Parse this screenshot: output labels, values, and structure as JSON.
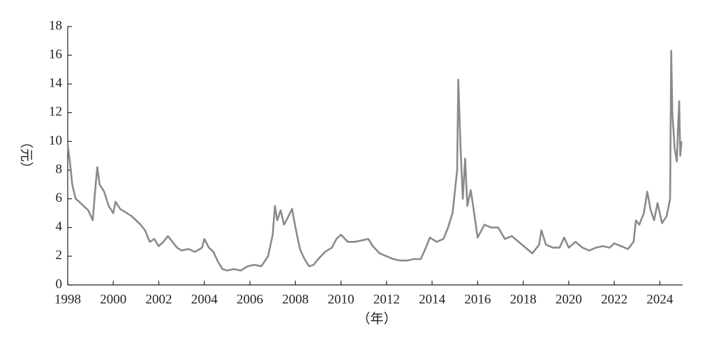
{
  "chart_data": {
    "type": "line",
    "x_label": "（年）",
    "y_label": "（元）",
    "xlim": [
      1998,
      2025
    ],
    "ylim": [
      0,
      18
    ],
    "xticks": [
      1998,
      2000,
      2002,
      2004,
      2006,
      2008,
      2010,
      2012,
      2014,
      2016,
      2018,
      2020,
      2022,
      2024
    ],
    "yticks": [
      0,
      2,
      4,
      6,
      8,
      10,
      12,
      14,
      16,
      18
    ],
    "color": "#8a8a8a",
    "x": [
      1998.0,
      1998.1,
      1998.2,
      1998.35,
      1998.5,
      1998.7,
      1998.9,
      1999.1,
      1999.2,
      1999.3,
      1999.4,
      1999.6,
      1999.8,
      2000.0,
      2000.1,
      2000.3,
      2000.5,
      2000.8,
      2001.0,
      2001.2,
      2001.4,
      2001.6,
      2001.8,
      2002.0,
      2002.2,
      2002.4,
      2002.6,
      2002.8,
      2003.0,
      2003.3,
      2003.6,
      2003.9,
      2004.0,
      2004.2,
      2004.4,
      2004.6,
      2004.8,
      2005.0,
      2005.3,
      2005.6,
      2005.9,
      2006.2,
      2006.5,
      2006.8,
      2007.0,
      2007.1,
      2007.2,
      2007.35,
      2007.5,
      2007.7,
      2007.85,
      2008.0,
      2008.2,
      2008.4,
      2008.6,
      2008.8,
      2009.0,
      2009.3,
      2009.6,
      2009.8,
      2010.0,
      2010.3,
      2010.6,
      2010.9,
      2011.2,
      2011.4,
      2011.7,
      2012.0,
      2012.3,
      2012.6,
      2012.9,
      2013.2,
      2013.5,
      2013.7,
      2013.9,
      2014.2,
      2014.5,
      2014.7,
      2014.9,
      2015.0,
      2015.1,
      2015.15,
      2015.25,
      2015.35,
      2015.45,
      2015.55,
      2015.7,
      2015.85,
      2016.0,
      2016.3,
      2016.6,
      2016.9,
      2017.2,
      2017.5,
      2017.8,
      2018.1,
      2018.4,
      2018.7,
      2018.8,
      2019.0,
      2019.3,
      2019.6,
      2019.8,
      2020.0,
      2020.3,
      2020.6,
      2020.9,
      2021.2,
      2021.5,
      2021.8,
      2022.0,
      2022.3,
      2022.6,
      2022.85,
      2022.95,
      2023.1,
      2023.3,
      2023.45,
      2023.6,
      2023.75,
      2023.9,
      2024.1,
      2024.3,
      2024.45,
      2024.5,
      2024.55,
      2024.65,
      2024.75,
      2024.8,
      2024.85,
      2024.9,
      2024.95
    ],
    "values": [
      9.8,
      8.5,
      7,
      6,
      5.8,
      5.5,
      5.2,
      4.5,
      6.5,
      8.2,
      7,
      6.5,
      5.5,
      5,
      5.8,
      5.3,
      5.1,
      4.8,
      4.5,
      4.2,
      3.8,
      3.0,
      3.2,
      2.7,
      3.0,
      3.4,
      3.0,
      2.6,
      2.4,
      2.5,
      2.3,
      2.6,
      3.2,
      2.6,
      2.3,
      1.6,
      1.1,
      1.0,
      1.1,
      1.0,
      1.3,
      1.4,
      1.3,
      2.0,
      3.5,
      5.5,
      4.5,
      5.2,
      4.2,
      4.8,
      5.3,
      4.0,
      2.5,
      1.8,
      1.3,
      1.4,
      1.8,
      2.3,
      2.6,
      3.2,
      3.5,
      3.0,
      3.0,
      3.1,
      3.2,
      2.7,
      2.2,
      2.0,
      1.8,
      1.7,
      1.7,
      1.8,
      1.8,
      2.5,
      3.3,
      3.0,
      3.2,
      4.0,
      5.0,
      6.5,
      8.0,
      14.3,
      9.5,
      6,
      8.8,
      5.5,
      6.6,
      5.0,
      3.3,
      4.2,
      4.0,
      4.0,
      3.2,
      3.4,
      3.0,
      2.6,
      2.2,
      2.8,
      3.8,
      2.8,
      2.6,
      2.6,
      3.3,
      2.6,
      3.0,
      2.6,
      2.4,
      2.6,
      2.7,
      2.6,
      2.9,
      2.7,
      2.5,
      3.0,
      4.5,
      4.2,
      5.0,
      6.5,
      5.2,
      4.5,
      5.7,
      4.3,
      4.8,
      6.0,
      16.3,
      12,
      9.5,
      8.6,
      11,
      12.8,
      9,
      10
    ]
  }
}
